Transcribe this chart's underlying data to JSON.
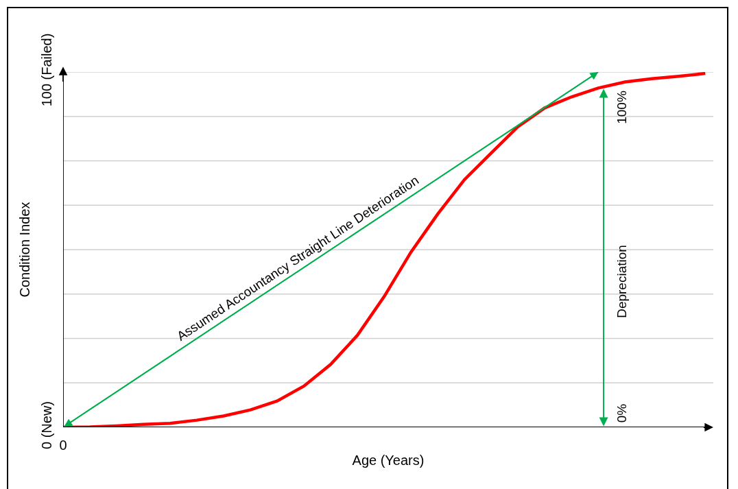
{
  "chart_data": {
    "type": "line",
    "xlabel": "Age (Years)",
    "ylabel": "Condition Index",
    "categories": [
      "0",
      null,
      null,
      null,
      null,
      null,
      null,
      null,
      null,
      null,
      null,
      null,
      null,
      null,
      null,
      null,
      null,
      null,
      null,
      null,
      null,
      null,
      null,
      null,
      null
    ],
    "ylim": [
      0,
      100
    ],
    "yticks": [
      {
        "value": 0,
        "label": "0 (New)"
      },
      {
        "value": 12.5,
        "label": null
      },
      {
        "value": 25,
        "label": null
      },
      {
        "value": 37.5,
        "label": null
      },
      {
        "value": 50,
        "label": null
      },
      {
        "value": 62.5,
        "label": null
      },
      {
        "value": 75,
        "label": null
      },
      {
        "value": 87.5,
        "label": null
      },
      {
        "value": 100,
        "label": "100 (Failed)"
      }
    ],
    "grid": "y",
    "marker": "none",
    "line_style": "solid",
    "series": [
      {
        "color": "#ff0000",
        "values": [
          0,
          0.1,
          0.4,
          0.8,
          1.1,
          2,
          3.2,
          4.9,
          7.4,
          11.6,
          17.7,
          25.9,
          36.8,
          49.3,
          60,
          69.7,
          77.2,
          84.6,
          89.9,
          93,
          95.5,
          97.2,
          98.1,
          98.8,
          99.6
        ]
      },
      {
        "color": "#00b050",
        "values": [
          0,
          5,
          10,
          15,
          20,
          25,
          30,
          35,
          40,
          45,
          50,
          55,
          60,
          65,
          70,
          75,
          80,
          85,
          90,
          95,
          100,
          null,
          null,
          null,
          null
        ]
      }
    ],
    "annotations": [
      "Assumed Accountancy Straight Line Deterioration",
      "Depreciation",
      "100%",
      "0%"
    ]
  }
}
